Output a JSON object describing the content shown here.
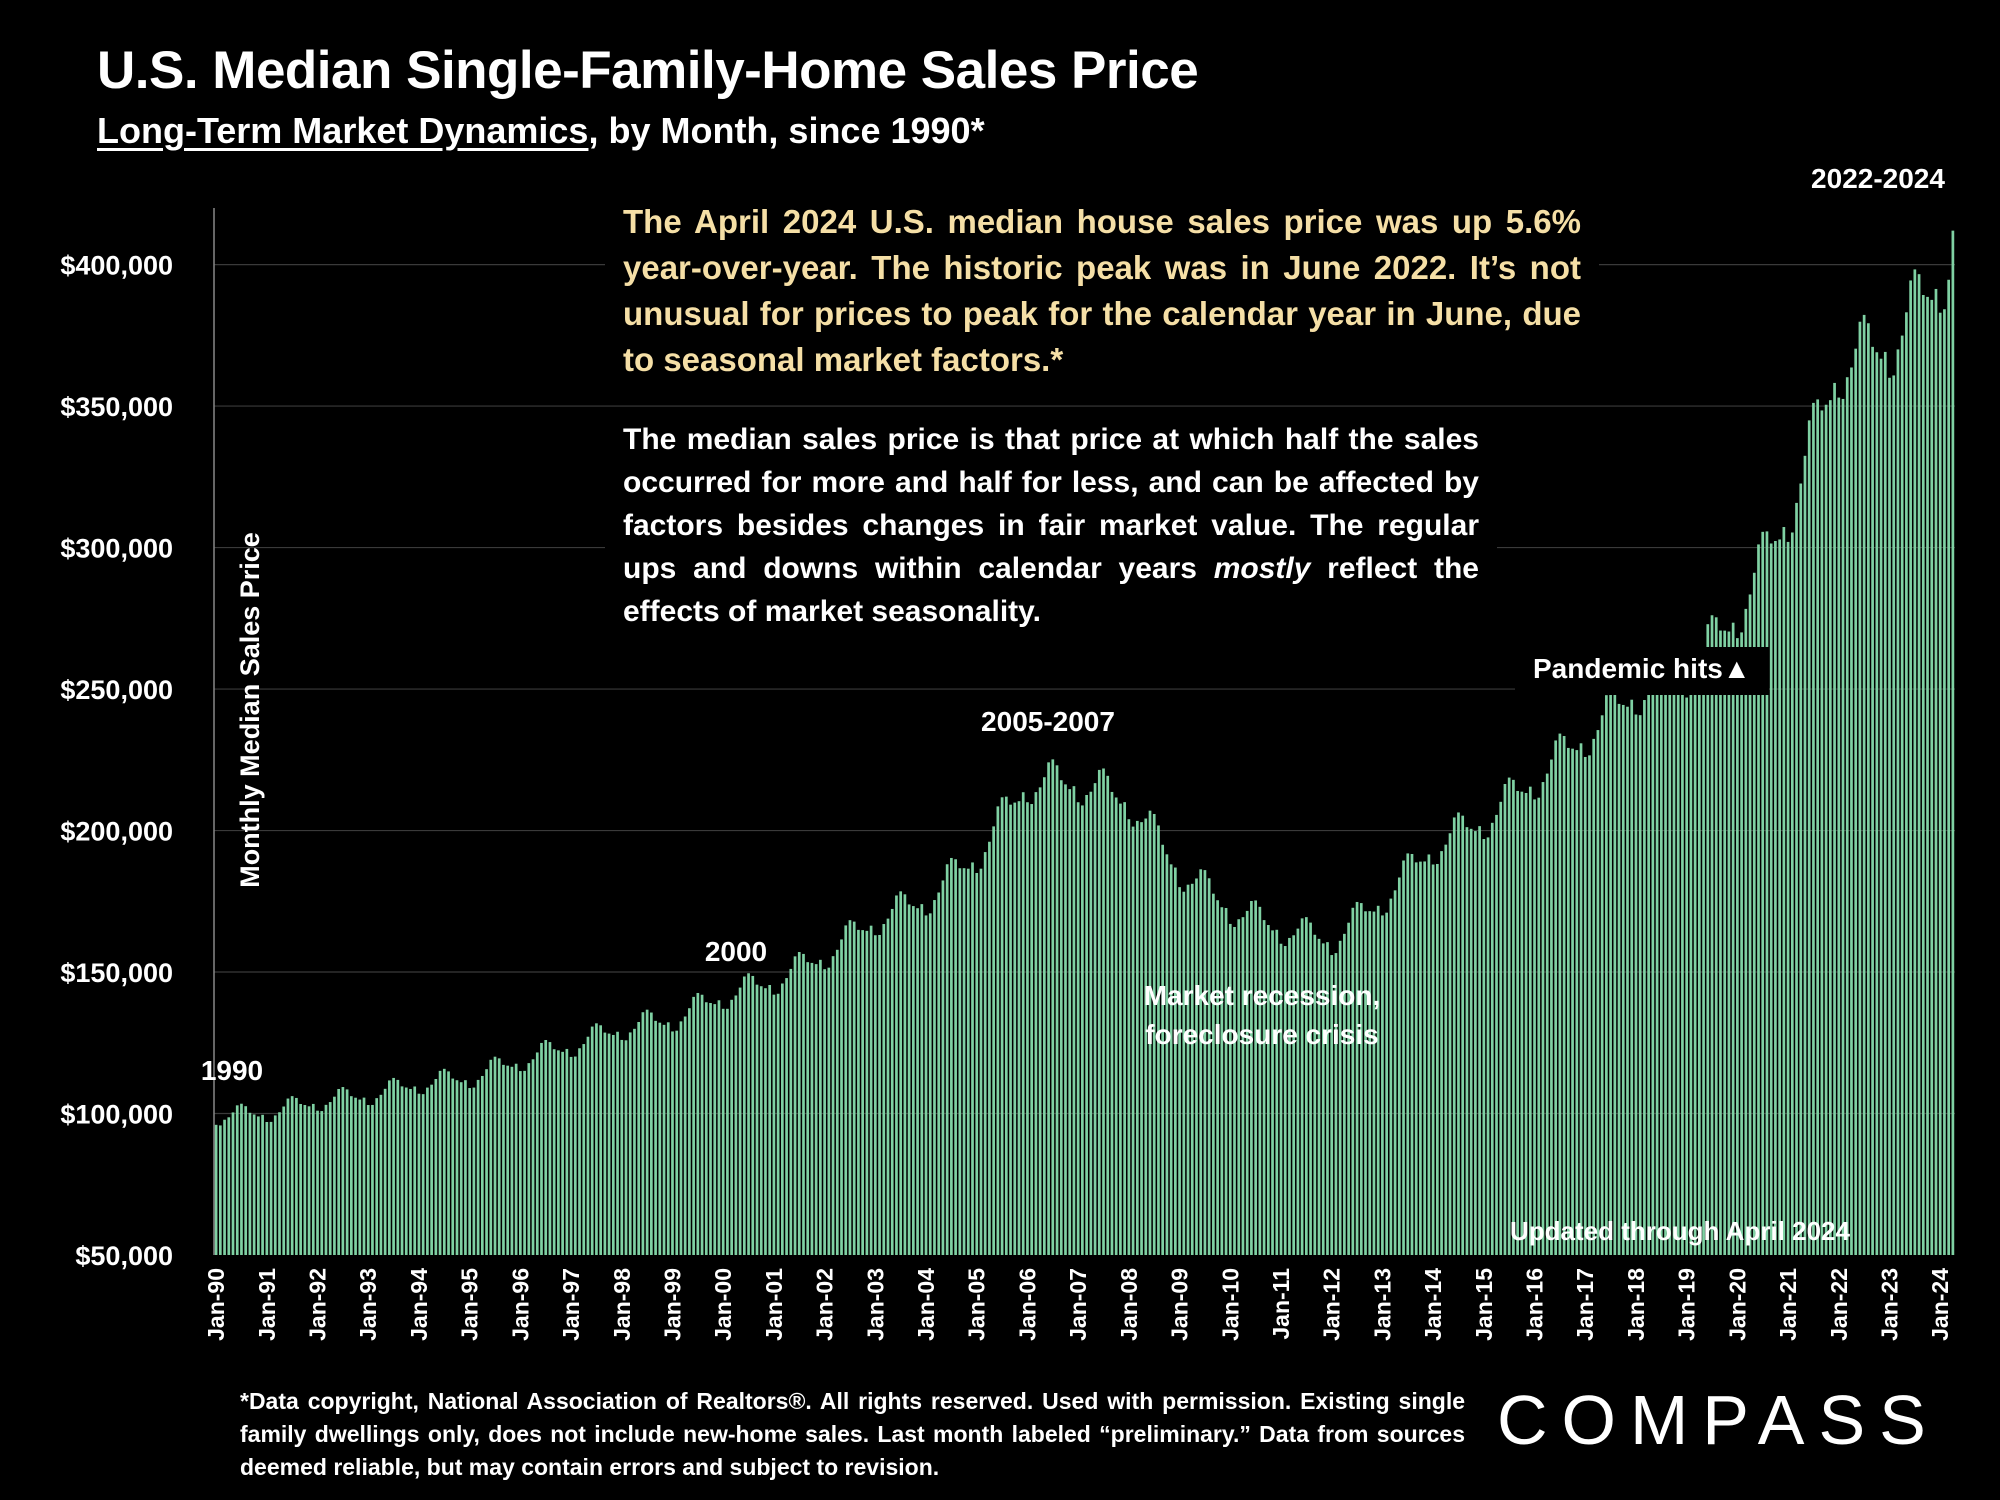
{
  "header": {
    "title": "U.S. Median Single-Family-Home Sales Price",
    "subtitle_link": "Long-Term Market Dynamics",
    "subtitle_rest": ", by Month, since 1990*"
  },
  "notes": {
    "highlight": "The April 2024 U.S. median house sales price was up 5.6% year-over-year. The historic peak was in June 2022. It’s not unusual for prices to peak for the calendar year in June, due to seasonal market factors.*",
    "definition_pre": "The median sales price is that price at which half the sales occurred for more and half for less, and can be affected by factors besides changes in fair market value. The regular ups and downs within calendar years ",
    "definition_italic": "mostly",
    "definition_post": " reflect the effects of market seasonality.",
    "pandemic": "Pandemic hits▲",
    "updated": "Updated through April 2024"
  },
  "footnote": "*Data copyright, National Association of Realtors®. All rights reserved. Used with permission. Existing single family dwellings only, does  not include new-home sales. Last month labeled “preliminary.” Data from sources deemed reliable, but may contain errors and subject to revision.",
  "logo": "COMPASS",
  "colors": {
    "bar": "#7fd1a3",
    "bar_edge": "#c8f0d6",
    "grid": "#3a3a3a",
    "highlight_text": "#f5dfa6",
    "background": "#000000"
  },
  "chart_data": {
    "type": "bar",
    "title": "U.S. Median Single-Family-Home Sales Price",
    "ylabel": "Monthly Median Sales Price",
    "xlabel": "",
    "ylim": [
      50000,
      420000
    ],
    "y_ticks": [
      "$50,000",
      "$100,000",
      "$150,000",
      "$200,000",
      "$250,000",
      "$300,000",
      "$350,000",
      "$400,000"
    ],
    "y_tick_values": [
      50000,
      100000,
      150000,
      200000,
      250000,
      300000,
      350000,
      400000
    ],
    "x_tick_labels": [
      "Jan-90",
      "Jan-91",
      "Jan-92",
      "Jan-93",
      "Jan-94",
      "Jan-95",
      "Jan-96",
      "Jan-97",
      "Jan-98",
      "Jan-99",
      "Jan-00",
      "Jan-01",
      "Jan-02",
      "Jan-03",
      "Jan-04",
      "Jan-05",
      "Jan-06",
      "Jan-07",
      "Jan-08",
      "Jan-09",
      "Jan-10",
      "Jan-11",
      "Jan-12",
      "Jan-13",
      "Jan-14",
      "Jan-15",
      "Jan-16",
      "Jan-17",
      "Jan-18",
      "Jan-19",
      "Jan-20",
      "Jan-21",
      "Jan-22",
      "Jan-23",
      "Jan-24"
    ],
    "start_month": "Jan-90",
    "monthly_seasonality": [
      0.968,
      0.965,
      0.985,
      0.993,
      1.01,
      1.035,
      1.04,
      1.03,
      1.005,
      0.998,
      0.99,
      0.995
    ],
    "january_values": [
      96000,
      97000,
      101000,
      103000,
      107000,
      109000,
      115000,
      120000,
      126000,
      129000,
      137000,
      142000,
      151000,
      163000,
      170000,
      185000,
      210000,
      210000,
      204000,
      180000,
      167000,
      160000,
      156000,
      170000,
      188000,
      197000,
      211000,
      226000,
      241000,
      247000,
      268000,
      302000,
      353000,
      360000,
      383000
    ],
    "april_2024_value": 412000,
    "annotations": [
      "1990",
      "2000",
      "2005-2007",
      "Market recession, foreclosure crisis",
      "2022-2024"
    ],
    "grid": true
  }
}
